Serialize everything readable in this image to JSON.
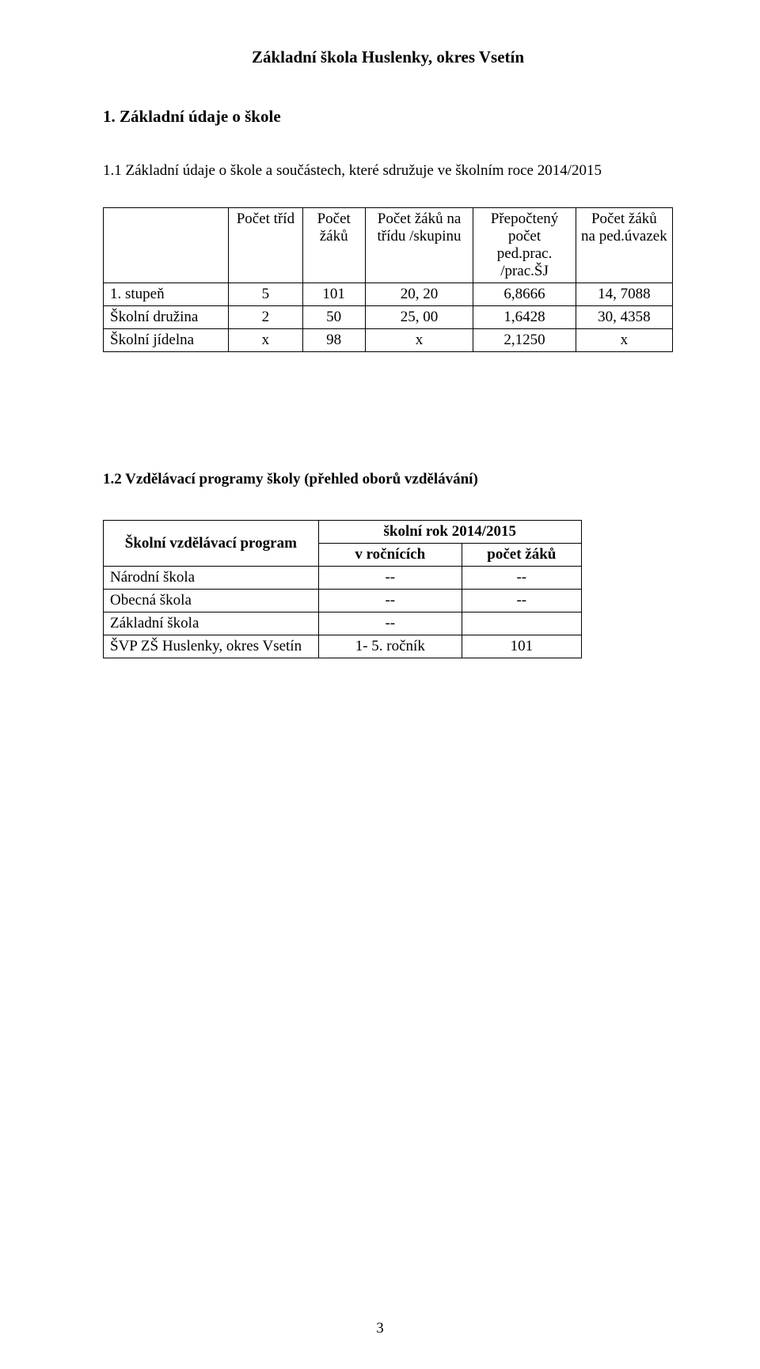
{
  "doc_title": "Základní škola Huslenky, okres Vsetín",
  "section1_heading": "1. Základní údaje o škole",
  "section1_1_heading": "1.1 Základní údaje o škole a součástech, které sdružuje ve školním roce 2014/2015",
  "table1": {
    "headers": {
      "c1": "Počet tříd",
      "c2": "Počet žáků",
      "c3": "Počet žáků na třídu /skupinu",
      "c4_l1": "Přepočtený",
      "c4_l2": "počet",
      "c4_l3": "ped.prac.",
      "c4_l4": "/prac.ŠJ",
      "c5_l1": "Počet žáků",
      "c5_l2": "na ped.úvazek"
    },
    "rows": [
      {
        "label": "1. stupeň",
        "a": "5",
        "b": "101",
        "c": "20, 20",
        "d": "6,8666",
        "e": "14, 7088"
      },
      {
        "label": "Školní družina",
        "a": "2",
        "b": "50",
        "c": "25, 00",
        "d": "1,6428",
        "e": "30, 4358"
      },
      {
        "label": "Školní jídelna",
        "a": "x",
        "b": "98",
        "c": "x",
        "d": "2,1250",
        "e": "x"
      }
    ]
  },
  "section1_2_heading": "1.2 Vzdělávací programy školy (přehled oborů vzdělávání)",
  "table2": {
    "program_header": "Školní vzdělávací program",
    "year_header": "školní rok 2014/2015",
    "col_a": "v ročnících",
    "col_b": "počet žáků",
    "rows": [
      {
        "label": "Národní škola",
        "a": "--",
        "b": "--"
      },
      {
        "label": "Obecná škola",
        "a": "--",
        "b": "--"
      },
      {
        "label": "Základní škola",
        "a": "--",
        "b": ""
      },
      {
        "label": "ŠVP ZŠ Huslenky, okres Vsetín",
        "a": "1- 5. ročník",
        "b": "101"
      }
    ]
  },
  "page_number": "3"
}
